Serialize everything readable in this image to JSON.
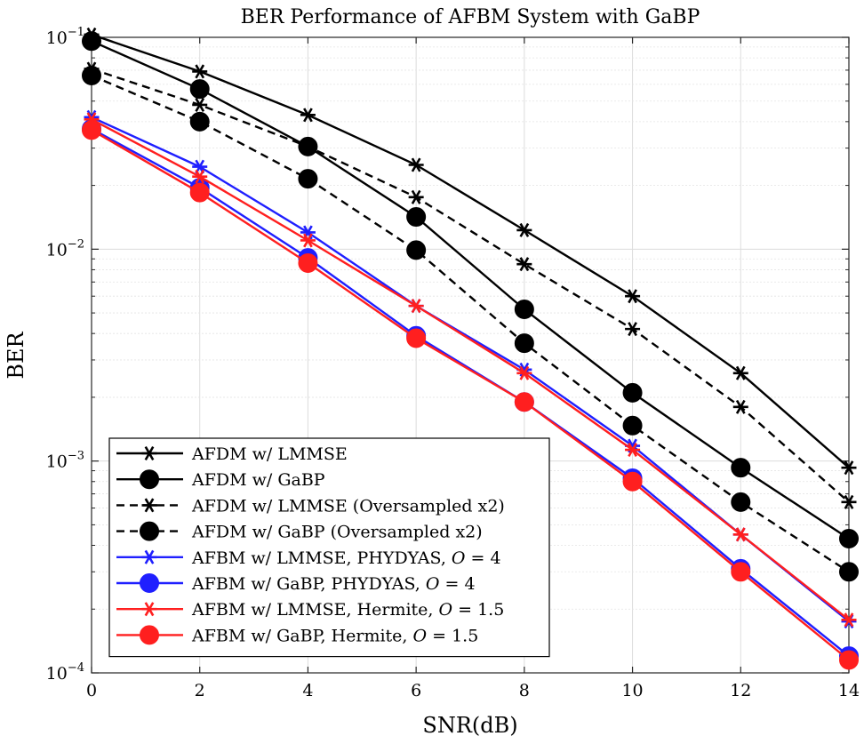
{
  "chart_data": {
    "type": "line",
    "title": "BER Performance of AFBM System with GaBP",
    "xlabel": "SNR(dB)",
    "ylabel": "BER",
    "xlim": [
      0,
      14
    ],
    "ylim": [
      0.0001,
      0.1
    ],
    "yscale": "log",
    "grid": true,
    "legend_position": "bottom-left",
    "x": [
      0,
      2,
      4,
      6,
      8,
      10,
      12,
      14
    ],
    "x_ticks": [
      "0",
      "2",
      "4",
      "6",
      "8",
      "10",
      "12",
      "14"
    ],
    "y_ticks": [
      {
        "value": 0.1,
        "base": "10",
        "exp": "−1"
      },
      {
        "value": 0.01,
        "base": "10",
        "exp": "−2"
      },
      {
        "value": 0.001,
        "base": "10",
        "exp": "−3"
      },
      {
        "value": 0.0001,
        "base": "10",
        "exp": "−4"
      }
    ],
    "series": [
      {
        "name": "AFDM w/ LMMSE",
        "label_plain": "AFDM w/ LMMSE",
        "label_var": "",
        "label_tail": "",
        "color": "#000000",
        "dash": "solid",
        "marker": "star",
        "values": [
          0.103,
          0.069,
          0.043,
          0.025,
          0.0123,
          0.006,
          0.0026,
          0.00093
        ]
      },
      {
        "name": "AFDM w/ GaBP",
        "label_plain": "AFDM w/ GaBP",
        "label_var": "",
        "label_tail": "",
        "color": "#000000",
        "dash": "solid",
        "marker": "circle",
        "values": [
          0.096,
          0.057,
          0.0305,
          0.0142,
          0.0052,
          0.0021,
          0.00093,
          0.00043
        ]
      },
      {
        "name": "AFDM w/ LMMSE (Oversampled x2)",
        "label_plain": "AFDM w/ LMMSE (Oversampled x2)",
        "label_var": "",
        "label_tail": "",
        "color": "#000000",
        "dash": "dashed",
        "marker": "star",
        "values": [
          0.071,
          0.048,
          0.0305,
          0.0176,
          0.0085,
          0.0042,
          0.0018,
          0.00064
        ]
      },
      {
        "name": "AFDM w/ GaBP (Oversampled x2)",
        "label_plain": "AFDM w/ GaBP (Oversampled x2)",
        "label_var": "",
        "label_tail": "",
        "color": "#000000",
        "dash": "dashed",
        "marker": "circle",
        "values": [
          0.066,
          0.04,
          0.0215,
          0.0099,
          0.0036,
          0.00147,
          0.00064,
          0.0003
        ]
      },
      {
        "name": "AFBM w/ LMMSE, PHYDYAS, O = 4",
        "label_plain": "AFBM w/ LMMSE, PHYDYAS, ",
        "label_var": "O",
        "label_tail": " = 4",
        "color": "#1f1fff",
        "dash": "solid",
        "marker": "star",
        "values": [
          0.042,
          0.0245,
          0.012,
          0.0054,
          0.0027,
          0.00118,
          0.00045,
          0.000175
        ]
      },
      {
        "name": "AFBM w/ GaBP, PHYDYAS, O = 4",
        "label_plain": "AFBM w/ GaBP, PHYDYAS, ",
        "label_var": "O",
        "label_tail": " = 4",
        "color": "#1f1fff",
        "dash": "solid",
        "marker": "circle",
        "values": [
          0.037,
          0.0195,
          0.0091,
          0.0039,
          0.0019,
          0.00083,
          0.00031,
          0.00012
        ]
      },
      {
        "name": "AFBM w/ LMMSE, Hermite, O = 1.5",
        "label_plain": "AFBM w/ LMMSE, Hermite, ",
        "label_var": "O",
        "label_tail": " = 1.5",
        "color": "#ff1f1f",
        "dash": "solid",
        "marker": "star",
        "values": [
          0.041,
          0.022,
          0.011,
          0.0054,
          0.0026,
          0.00113,
          0.00045,
          0.000178
        ]
      },
      {
        "name": "AFBM w/ GaBP, Hermite, O = 1.5",
        "label_plain": "AFBM w/ GaBP, Hermite, ",
        "label_var": "O",
        "label_tail": " = 1.5",
        "color": "#ff1f1f",
        "dash": "solid",
        "marker": "circle",
        "values": [
          0.0365,
          0.0185,
          0.0086,
          0.0038,
          0.0019,
          0.0008,
          0.0003,
          0.000115
        ]
      }
    ]
  }
}
